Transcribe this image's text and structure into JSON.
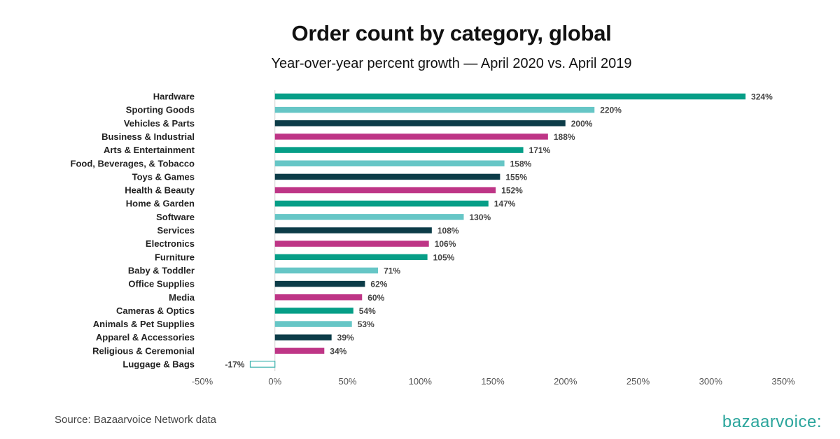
{
  "chart_data": {
    "type": "bar",
    "orientation": "horizontal",
    "title": "Order count by category, global",
    "subtitle": "Year-over-year percent growth — April 2020 vs. April 2019",
    "xlim": [
      -50,
      350
    ],
    "x_ticks": [
      -50,
      0,
      50,
      100,
      150,
      200,
      250,
      300,
      350
    ],
    "x_tick_labels": [
      "-50%",
      "0%",
      "50%",
      "100%",
      "150%",
      "200%",
      "250%",
      "300%",
      "350%"
    ],
    "grid": false,
    "legend": "none",
    "categories": [
      "Hardware",
      "Sporting Goods",
      "Vehicles & Parts",
      "Business & Industrial",
      "Arts & Entertainment",
      "Food, Beverages, & Tobacco",
      "Toys & Games",
      "Health & Beauty",
      "Home & Garden",
      "Software",
      "Services",
      "Electronics",
      "Furniture",
      "Baby & Toddler",
      "Office Supplies",
      "Media",
      "Cameras & Optics",
      "Animals & Pet Supplies",
      "Apparel & Accessories",
      "Religious & Ceremonial",
      "Luggage & Bags"
    ],
    "values": [
      324,
      220,
      200,
      188,
      171,
      158,
      155,
      152,
      147,
      130,
      108,
      106,
      105,
      71,
      62,
      60,
      54,
      53,
      39,
      34,
      -17
    ],
    "value_labels": [
      "324%",
      "220%",
      "200%",
      "188%",
      "171%",
      "158%",
      "155%",
      "152%",
      "147%",
      "130%",
      "108%",
      "106%",
      "105%",
      "71%",
      "62%",
      "60%",
      "54%",
      "53%",
      "39%",
      "34%",
      "-17%"
    ],
    "colors": {
      "teal": "#069e87",
      "light_teal": "#66c6c6",
      "dark_navy": "#0c3c48",
      "magenta": "#be3586",
      "negative_outline": "#3db3ae"
    },
    "color_pattern": [
      "teal",
      "light_teal",
      "dark_navy",
      "magenta",
      "teal",
      "light_teal",
      "dark_navy",
      "magenta",
      "teal",
      "light_teal",
      "dark_navy",
      "magenta",
      "teal",
      "light_teal",
      "dark_navy",
      "magenta",
      "teal",
      "light_teal",
      "dark_navy",
      "magenta",
      "negative_outline"
    ]
  },
  "footer": {
    "source": "Source: Bazaarvoice Network data",
    "logo": "bazaarvoice:"
  }
}
